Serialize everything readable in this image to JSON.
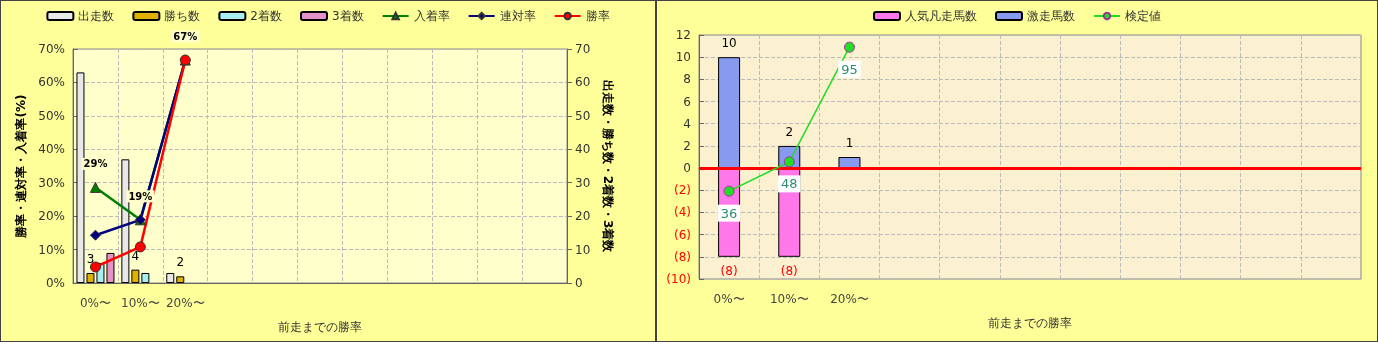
{
  "chart_data": [
    {
      "type": "bar",
      "xlabel": "前走までの勝率",
      "ylabel": "勝率・連対率・入着率(%)",
      "y2label": "出走数・勝ち数・2着数・3着数",
      "categories": [
        "0%〜",
        "10%〜",
        "20%〜",
        null,
        null,
        null,
        null,
        null,
        null,
        null,
        null
      ],
      "ylim": [
        0,
        70
      ],
      "yticks": [
        {
          "value": 0,
          "label": "0%"
        },
        {
          "value": 10,
          "label": "10%"
        },
        {
          "value": 20,
          "label": "20%"
        },
        {
          "value": 30,
          "label": "30%"
        },
        {
          "value": 40,
          "label": "40%"
        },
        {
          "value": 50,
          "label": "50%"
        },
        {
          "value": 60,
          "label": "60%"
        },
        {
          "value": 70,
          "label": "70%"
        }
      ],
      "y2lim": [
        0,
        70
      ],
      "y2ticks": [
        0,
        10,
        20,
        30,
        40,
        50,
        60,
        70
      ],
      "grid": true,
      "legend": "top",
      "series": [
        {
          "name": "出走数",
          "axis": "y2",
          "color": "#e8e8e8",
          "values": [
            63,
            37,
            3,
            null,
            null,
            null,
            null,
            null,
            null,
            null,
            null
          ]
        },
        {
          "name": "勝ち数",
          "axis": "y2",
          "color": "#e0b000",
          "values": [
            3,
            4,
            2,
            null,
            null,
            null,
            null,
            null,
            null,
            null,
            null
          ],
          "value_labels": [
            "3",
            "4",
            "2",
            null,
            null,
            null,
            null,
            null,
            null,
            null,
            null
          ]
        },
        {
          "name": "2着数",
          "axis": "y2",
          "color": "#a8eef0",
          "values": [
            6,
            3,
            null,
            null,
            null,
            null,
            null,
            null,
            null,
            null,
            null
          ]
        },
        {
          "name": "3着数",
          "axis": "y2",
          "color": "#e890c8",
          "values": [
            9,
            null,
            null,
            null,
            null,
            null,
            null,
            null,
            null,
            null,
            null
          ]
        },
        {
          "name": "入着率",
          "type": "line",
          "marker": "triangle",
          "color": "#008000",
          "values": [
            28.6,
            18.9,
            66.7,
            null,
            null,
            null,
            null,
            null,
            null,
            null,
            null
          ],
          "value_labels": [
            "29%",
            "19%",
            "67%",
            null,
            null,
            null,
            null,
            null,
            null,
            null,
            null
          ]
        },
        {
          "name": "連対率",
          "type": "line",
          "marker": "diamond",
          "color": "#000080",
          "values": [
            14.3,
            18.9,
            66.7,
            null,
            null,
            null,
            null,
            null,
            null,
            null,
            null
          ]
        },
        {
          "name": "勝率",
          "type": "line",
          "marker": "circle",
          "color": "#ff0000",
          "values": [
            4.8,
            10.8,
            66.7,
            null,
            null,
            null,
            null,
            null,
            null,
            null,
            null
          ]
        }
      ]
    },
    {
      "type": "bar",
      "xlabel": "前走までの勝率",
      "stacked": true,
      "categories": [
        "0%〜",
        "10%〜",
        "20%〜",
        null,
        null,
        null,
        null,
        null,
        null,
        null,
        null
      ],
      "ylim": [
        -10,
        12
      ],
      "yticks": [
        {
          "value": -10,
          "label": "(10)"
        },
        {
          "value": -8,
          "label": "(8)"
        },
        {
          "value": -6,
          "label": "(6)"
        },
        {
          "value": -4,
          "label": "(4)"
        },
        {
          "value": -2,
          "label": "(2)"
        },
        0,
        2,
        4,
        6,
        8,
        10,
        12
      ],
      "y2lim": [
        0,
        100
      ],
      "tick_labels": "xy",
      "grid": true,
      "legend": "top",
      "ref_lines": [
        {
          "axis": "y",
          "value": 0,
          "color": "#ff0000"
        }
      ],
      "series": [
        {
          "name": "人気凡走馬数",
          "color": "#ff77e8",
          "values": [
            -8,
            -8,
            null,
            null,
            null,
            null,
            null,
            null,
            null,
            null,
            null
          ],
          "value_labels": [
            "(8)",
            "(8)",
            null,
            null,
            null,
            null,
            null,
            null,
            null,
            null,
            null
          ]
        },
        {
          "name": "激走馬数",
          "color": "#8899f0",
          "values": [
            10,
            2,
            1,
            null,
            null,
            null,
            null,
            null,
            null,
            null,
            null
          ],
          "value_labels": [
            "10",
            "2",
            "1",
            null,
            null,
            null,
            null,
            null,
            null,
            null,
            null
          ]
        },
        {
          "name": "検定値",
          "type": "line",
          "axis": "y2",
          "marker": "circle",
          "color": "#22dd22",
          "values": [
            36,
            48,
            95,
            null,
            null,
            null,
            null,
            null,
            null,
            null,
            null
          ],
          "value_labels": [
            "36",
            "48",
            "95",
            null,
            null,
            null,
            null,
            null,
            null,
            null,
            null
          ]
        }
      ]
    }
  ]
}
